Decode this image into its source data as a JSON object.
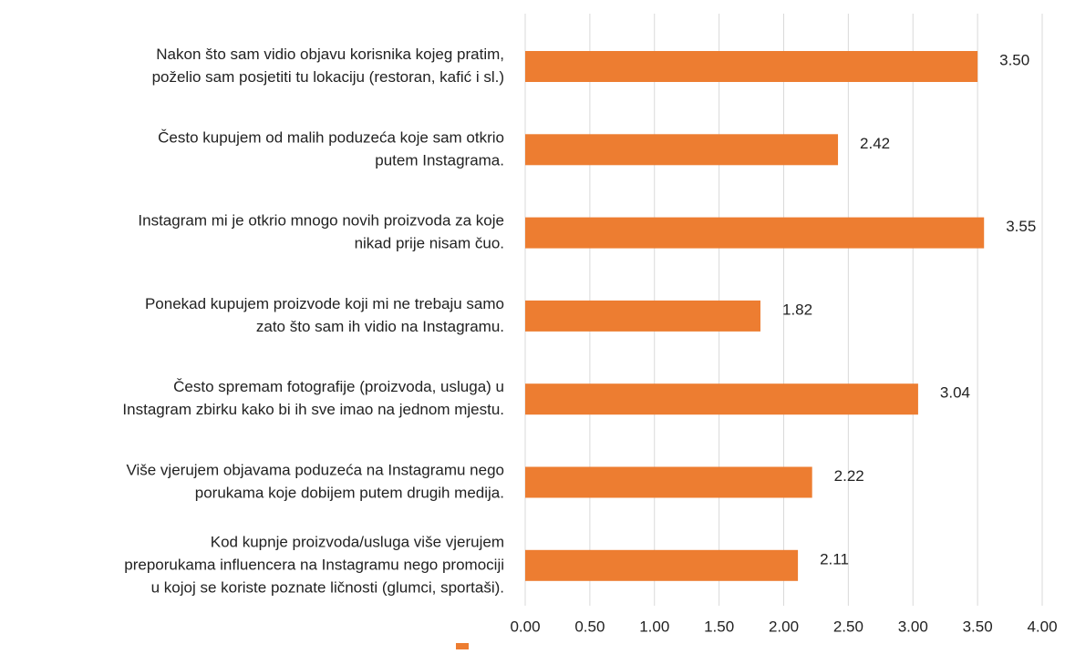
{
  "chart_data": {
    "type": "barh",
    "categories": [
      [
        "Nakon što sam vidio objavu korisnika kojeg pratim,",
        "poželio sam posjetiti tu lokaciju (restoran, kafić i sl.)"
      ],
      [
        "Često kupujem od malih poduzeća koje sam otkrio",
        "putem Instagrama."
      ],
      [
        "Instagram mi je otkrio mnogo novih proizvoda za koje",
        "nikad prije nisam čuo."
      ],
      [
        "Ponekad kupujem proizvode koji mi ne trebaju samo",
        "zato što sam ih vidio na Instagramu."
      ],
      [
        "Često spremam fotografije (proizvoda, usluga) u",
        "Instagram zbirku kako bi ih sve imao na jednom mjestu."
      ],
      [
        "Više vjerujem objavama poduzeća na Instagramu nego",
        "porukama koje dobijem putem drugih medija."
      ],
      [
        "Kod kupnje proizvoda/usluga više vjerujem",
        "preporukama influencera na Instagramu nego promociji",
        "u kojoj se koriste poznate ličnosti (glumci, sportaši)."
      ]
    ],
    "values": [
      3.5,
      2.42,
      3.55,
      1.82,
      3.04,
      2.22,
      2.11
    ],
    "value_labels": [
      "3.50",
      "2.42",
      "3.55",
      "1.82",
      "3.04",
      "2.22",
      "2.11"
    ],
    "color": "#ed7d31",
    "xlim": [
      0,
      4
    ],
    "xticks": [
      {
        "value": 0,
        "label": "0.00"
      },
      {
        "value": 0.5,
        "label": "0.50"
      },
      {
        "value": 1,
        "label": "1.00"
      },
      {
        "value": 1.5,
        "label": "1.50"
      },
      {
        "value": 2,
        "label": "2.00"
      },
      {
        "value": 2.5,
        "label": "2.50"
      },
      {
        "value": 3,
        "label": "3.00"
      },
      {
        "value": 3.5,
        "label": "3.50"
      },
      {
        "value": 4,
        "label": "4.00"
      }
    ],
    "grid": true
  }
}
